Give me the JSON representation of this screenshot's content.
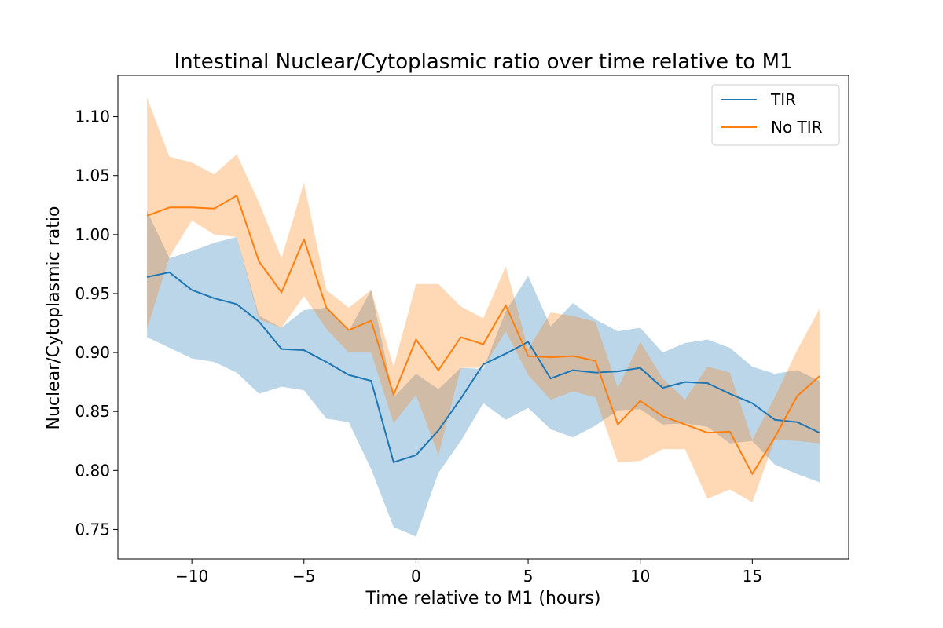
{
  "chart_data": {
    "type": "line",
    "title": "Intestinal Nuclear/Cytoplasmic ratio over time relative to M1",
    "xlabel": "Time relative to M1 (hours)",
    "ylabel": "Nuclear/Cytoplasmic ratio",
    "xlim": [
      -13.3,
      19.3
    ],
    "ylim": [
      0.725,
      1.135
    ],
    "xticks": [
      -10,
      -5,
      0,
      5,
      10,
      15
    ],
    "xtick_labels": [
      "−10",
      "−5",
      "0",
      "5",
      "10",
      "15"
    ],
    "yticks": [
      0.75,
      0.8,
      0.85,
      0.9,
      0.95,
      1.0,
      1.05,
      1.1
    ],
    "ytick_labels": [
      "0.75",
      "0.80",
      "0.85",
      "0.90",
      "0.95",
      "1.00",
      "1.05",
      "1.10"
    ],
    "grid": false,
    "legend": {
      "position": "top-right"
    },
    "x": [
      -12,
      -11,
      -10,
      -9,
      -8,
      -7,
      -6,
      -5,
      -4,
      -3,
      -2,
      -1,
      0,
      1,
      2,
      3,
      4,
      5,
      6,
      7,
      8,
      9,
      10,
      11,
      12,
      13,
      14,
      15,
      16,
      17,
      18
    ],
    "series": [
      {
        "name": "TIR",
        "color": "#1f77b4",
        "values": [
          0.964,
          0.968,
          0.953,
          0.946,
          0.941,
          0.926,
          0.903,
          0.902,
          0.892,
          0.881,
          0.876,
          0.807,
          0.813,
          0.834,
          0.861,
          0.89,
          0.899,
          0.909,
          0.878,
          0.885,
          0.883,
          0.884,
          0.887,
          0.87,
          0.875,
          0.874,
          0.865,
          0.857,
          0.843,
          0.841,
          0.832
        ],
        "upper": [
          1.02,
          0.98,
          0.986,
          0.993,
          0.998,
          0.931,
          0.921,
          0.936,
          0.938,
          0.918,
          0.953,
          0.862,
          0.882,
          0.869,
          0.887,
          0.886,
          0.935,
          0.965,
          0.922,
          0.942,
          0.928,
          0.918,
          0.921,
          0.9,
          0.908,
          0.911,
          0.904,
          0.888,
          0.882,
          0.885,
          0.876
        ],
        "lower": [
          0.913,
          0.904,
          0.895,
          0.892,
          0.883,
          0.865,
          0.871,
          0.868,
          0.844,
          0.841,
          0.801,
          0.752,
          0.744,
          0.798,
          0.825,
          0.857,
          0.843,
          0.853,
          0.835,
          0.828,
          0.838,
          0.851,
          0.852,
          0.839,
          0.84,
          0.837,
          0.823,
          0.825,
          0.805,
          0.797,
          0.79
        ]
      },
      {
        "name": "No TIR",
        "color": "#ff7f0e",
        "values": [
          1.016,
          1.023,
          1.023,
          1.022,
          1.033,
          0.977,
          0.951,
          0.996,
          0.938,
          0.919,
          0.927,
          0.864,
          0.911,
          0.885,
          0.913,
          0.907,
          0.94,
          0.897,
          0.896,
          0.897,
          0.893,
          0.839,
          0.859,
          0.846,
          0.839,
          0.832,
          0.833,
          0.797,
          0.828,
          0.863,
          0.88
        ],
        "upper": [
          1.116,
          1.066,
          1.061,
          1.051,
          1.068,
          1.027,
          0.98,
          1.044,
          0.953,
          0.938,
          0.953,
          0.888,
          0.958,
          0.958,
          0.939,
          0.929,
          0.973,
          0.903,
          0.934,
          0.931,
          0.926,
          0.87,
          0.909,
          0.878,
          0.86,
          0.888,
          0.883,
          0.826,
          0.862,
          0.902,
          0.937
        ],
        "lower": [
          0.92,
          0.981,
          1.012,
          1.0,
          0.998,
          0.928,
          0.921,
          0.948,
          0.92,
          0.9,
          0.9,
          0.84,
          0.864,
          0.813,
          0.887,
          0.887,
          0.918,
          0.881,
          0.86,
          0.867,
          0.862,
          0.807,
          0.808,
          0.818,
          0.818,
          0.776,
          0.784,
          0.773,
          0.826,
          0.825,
          0.823
        ]
      }
    ]
  }
}
